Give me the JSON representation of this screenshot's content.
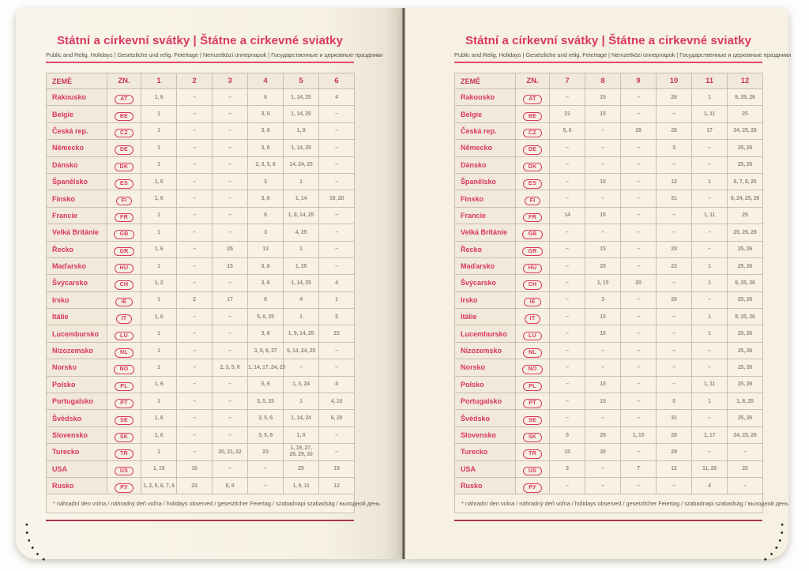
{
  "title": "Státní a církevní svátky | Štátne a cirkevné sviatky",
  "subtitle": "Public and Relig. Holidays | Gesetzliche und relig. Feiertage | Nemzetközi ünnepnapok | Государственные и церковные праздники",
  "footnote": "* náhradní den volna / náhradný deň voľna / holidays observed / gesetzlicher Feiertag / szabadnapi szabadság / выходной день",
  "colors": {
    "accent_pink": "#da3763",
    "header_red": "#c8355b",
    "top_rule": "#e4486e",
    "bottom_rule": "#a63850",
    "page_cream": "#f6f1e3",
    "value_gray": "#958d80",
    "border": "#c9bfae"
  },
  "left_table": {
    "headers": [
      "ZEMĚ",
      "ZN.",
      "1",
      "2",
      "3",
      "4",
      "5",
      "6"
    ],
    "rows": [
      {
        "country": "Rakousko",
        "code": "AT",
        "values": [
          "1, 6",
          "–",
          "–",
          "6",
          "1, 14, 25",
          "4"
        ]
      },
      {
        "country": "Belgie",
        "code": "BE",
        "values": [
          "1",
          "–",
          "–",
          "3, 6",
          "1, 14, 25",
          "–"
        ]
      },
      {
        "country": "Česká rep.",
        "code": "CZ",
        "values": [
          "1",
          "–",
          "–",
          "3, 6",
          "1, 8",
          "–"
        ]
      },
      {
        "country": "Německo",
        "code": "DE",
        "values": [
          "1",
          "–",
          "–",
          "3, 6",
          "1, 14, 25",
          "–"
        ]
      },
      {
        "country": "Dánsko",
        "code": "DK",
        "values": [
          "1",
          "–",
          "–",
          "2, 3, 5, 6",
          "14, 24, 25",
          "–"
        ]
      },
      {
        "country": "Španělsko",
        "code": "ES",
        "values": [
          "1, 6",
          "–",
          "–",
          "3",
          "1",
          "–"
        ]
      },
      {
        "country": "Finsko",
        "code": "FI",
        "values": [
          "1, 6",
          "–",
          "–",
          "3, 6",
          "1, 14",
          "19, 20"
        ]
      },
      {
        "country": "Francie",
        "code": "FR",
        "values": [
          "1",
          "–",
          "–",
          "6",
          "1, 8, 14, 25",
          "–"
        ]
      },
      {
        "country": "Velká Británie",
        "code": "GB",
        "values": [
          "1",
          "–",
          "–",
          "3",
          "4, 25",
          "–"
        ]
      },
      {
        "country": "Řecko",
        "code": "GR",
        "values": [
          "1, 6",
          "–",
          "25",
          "13",
          "1",
          "–"
        ]
      },
      {
        "country": "Maďarsko",
        "code": "HU",
        "values": [
          "1",
          "–",
          "15",
          "3, 6",
          "1, 25",
          "–"
        ]
      },
      {
        "country": "Švýcarsko",
        "code": "CH",
        "values": [
          "1, 2",
          "–",
          "–",
          "3, 6",
          "1, 14, 25",
          "4"
        ]
      },
      {
        "country": "Irsko",
        "code": "IE",
        "values": [
          "1",
          "2",
          "17",
          "6",
          "4",
          "1"
        ]
      },
      {
        "country": "Itálie",
        "code": "IT",
        "values": [
          "1, 6",
          "–",
          "–",
          "5, 6, 25",
          "1",
          "2"
        ]
      },
      {
        "country": "Lucembursko",
        "code": "LU",
        "values": [
          "1",
          "–",
          "–",
          "3, 6",
          "1, 9, 14, 25",
          "23"
        ]
      },
      {
        "country": "Nizozemsko",
        "code": "NL",
        "values": [
          "1",
          "–",
          "–",
          "3, 5, 6, 27",
          "5, 14, 24, 25",
          "–"
        ]
      },
      {
        "country": "Norsko",
        "code": "NO",
        "values": [
          "1",
          "–",
          "2, 3, 5, 6",
          "1, 14, 17, 24, 25",
          "–",
          "–"
        ]
      },
      {
        "country": "Polsko",
        "code": "PL",
        "values": [
          "1, 6",
          "–",
          "–",
          "5, 6",
          "1, 3, 24",
          "4"
        ]
      },
      {
        "country": "Portugalsko",
        "code": "PT",
        "values": [
          "1",
          "–",
          "–",
          "3, 5, 25",
          "1",
          "4, 10"
        ]
      },
      {
        "country": "Švédsko",
        "code": "SE",
        "values": [
          "1, 6",
          "–",
          "–",
          "3, 5, 6",
          "1, 14, 24",
          "6, 20"
        ]
      },
      {
        "country": "Slovensko",
        "code": "SK",
        "values": [
          "1, 6",
          "–",
          "–",
          "3, 5, 6",
          "1, 8",
          "–"
        ]
      },
      {
        "country": "Turecko",
        "code": "TR",
        "values": [
          "1",
          "–",
          "20, 21, 22",
          "23",
          [
            "1, 19, 27,",
            "28, 29, 30"
          ],
          "–"
        ]
      },
      {
        "country": "USA",
        "code": "US",
        "values": [
          "1, 19",
          "16",
          "–",
          "–",
          "25",
          "19"
        ]
      },
      {
        "country": "Rusko",
        "code": "РУ",
        "values": [
          "1, 2, 5, 6, 7, 8",
          "23",
          "8, 9",
          "–",
          "1, 9, 11",
          "12"
        ]
      }
    ]
  },
  "right_table": {
    "headers": [
      "ZEMĚ",
      "ZN.",
      "7",
      "8",
      "9",
      "10",
      "11",
      "12"
    ],
    "rows": [
      {
        "country": "Rakousko",
        "code": "AT",
        "values": [
          "–",
          "15",
          "–",
          "26",
          "1",
          "8, 25, 26"
        ]
      },
      {
        "country": "Belgie",
        "code": "BE",
        "values": [
          "21",
          "15",
          "–",
          "–",
          "1, 11",
          "25"
        ]
      },
      {
        "country": "Česká rep.",
        "code": "CZ",
        "values": [
          "5, 6",
          "–",
          "28",
          "28",
          "17",
          "24, 25, 26"
        ]
      },
      {
        "country": "Německo",
        "code": "DE",
        "values": [
          "–",
          "–",
          "–",
          "3",
          "–",
          "25, 26"
        ]
      },
      {
        "country": "Dánsko",
        "code": "DK",
        "values": [
          "–",
          "–",
          "–",
          "–",
          "–",
          "25, 26"
        ]
      },
      {
        "country": "Španělsko",
        "code": "ES",
        "values": [
          "–",
          "15",
          "–",
          "12",
          "1",
          "6, 7, 8, 25"
        ]
      },
      {
        "country": "Finsko",
        "code": "FI",
        "values": [
          "–",
          "–",
          "–",
          "31",
          "–",
          "6, 24, 25, 26"
        ]
      },
      {
        "country": "Francie",
        "code": "FR",
        "values": [
          "14",
          "15",
          "–",
          "–",
          "1, 11",
          "25"
        ]
      },
      {
        "country": "Velká Británie",
        "code": "GB",
        "values": [
          "–",
          "–",
          "–",
          "–",
          "–",
          "25, 26, 28"
        ]
      },
      {
        "country": "Řecko",
        "code": "GR",
        "values": [
          "–",
          "15",
          "–",
          "28",
          "–",
          "25, 26"
        ]
      },
      {
        "country": "Maďarsko",
        "code": "HU",
        "values": [
          "–",
          "20",
          "–",
          "23",
          "1",
          "25, 26"
        ]
      },
      {
        "country": "Švýcarsko",
        "code": "CH",
        "values": [
          "–",
          "1, 15",
          "20",
          "–",
          "1",
          "8, 25, 26"
        ]
      },
      {
        "country": "Irsko",
        "code": "IE",
        "values": [
          "–",
          "3",
          "–",
          "26",
          "–",
          "25, 26"
        ]
      },
      {
        "country": "Itálie",
        "code": "IT",
        "values": [
          "–",
          "15",
          "–",
          "–",
          "1",
          "8, 25, 26"
        ]
      },
      {
        "country": "Lucembursko",
        "code": "LU",
        "values": [
          "–",
          "15",
          "–",
          "–",
          "1",
          "25, 26"
        ]
      },
      {
        "country": "Nizozemsko",
        "code": "NL",
        "values": [
          "–",
          "–",
          "–",
          "–",
          "–",
          "25, 26"
        ]
      },
      {
        "country": "Norsko",
        "code": "NO",
        "values": [
          "–",
          "–",
          "–",
          "–",
          "–",
          "25, 26"
        ]
      },
      {
        "country": "Polsko",
        "code": "PL",
        "values": [
          "–",
          "15",
          "–",
          "–",
          "1, 11",
          "25, 26"
        ]
      },
      {
        "country": "Portugalsko",
        "code": "PT",
        "values": [
          "–",
          "15",
          "–",
          "5",
          "1",
          "1, 8, 25"
        ]
      },
      {
        "country": "Švédsko",
        "code": "SE",
        "values": [
          "–",
          "–",
          "–",
          "31",
          "–",
          "25, 26"
        ]
      },
      {
        "country": "Slovensko",
        "code": "SK",
        "values": [
          "5",
          "29",
          "1, 15",
          "28",
          "1, 17",
          "24, 25, 26"
        ]
      },
      {
        "country": "Turecko",
        "code": "TR",
        "values": [
          "15",
          "30",
          "–",
          "29",
          "–",
          "–"
        ]
      },
      {
        "country": "USA",
        "code": "US",
        "values": [
          "3",
          "–",
          "7",
          "12",
          "11, 26",
          "25"
        ]
      },
      {
        "country": "Rusko",
        "code": "РУ",
        "values": [
          "–",
          "–",
          "–",
          "–",
          "4",
          "–"
        ]
      }
    ]
  }
}
